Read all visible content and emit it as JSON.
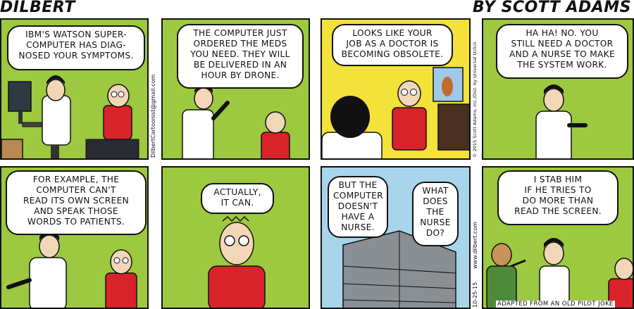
{
  "header": {
    "left_title": "DILBERT",
    "right_title": "BY SCOTT ADAMS"
  },
  "panels": [
    {
      "bubble": "IBM'S WATSON SUPER-\nCOMPUTER HAS DIAG-\nNOSED YOUR SYMPTOMS."
    },
    {
      "bubble": "THE COMPUTER JUST\nORDERED THE MEDS\nYOU NEED. THEY WILL\nBE DELIVERED IN AN\nHOUR BY DRONE."
    },
    {
      "bubble": "LOOKS LIKE YOUR\nJOB AS A DOCTOR IS\nBECOMING OBSOLETE."
    },
    {
      "bubble": "HA HA! NO. YOU\nSTILL NEED A DOCTOR\nAND A NURSE TO MAKE\nTHE SYSTEM WORK."
    },
    {
      "bubble": "FOR EXAMPLE, THE\nCOMPUTER CAN'T\nREAD ITS OWN SCREEN\nAND SPEAK THOSE\nWORDS TO PATIENTS."
    },
    {
      "bubble": "ACTUALLY,\nIT CAN."
    },
    {
      "bubble_left": "BUT THE\nCOMPUTER\nDOESN'T\nHAVE A\nNURSE.",
      "bubble_right": "WHAT\nDOES\nTHE\nNURSE\nDO?"
    },
    {
      "bubble": "I STAB HIM\nIF HE TRIES TO\nDO MORE THAN\nREAD THE SCREEN."
    }
  ],
  "side_text": {
    "email": "DilbertCartoonist@gmail.com",
    "copyright": "© 2015 Scott Adams, Inc./Dist. by Universal Uclick",
    "website": "www.dilbert.com",
    "date": "10-25-15"
  },
  "footer_credit": "ADAPTED FROM AN OLD PILOT JOKE",
  "colors": {
    "panel_green": "#9cc93f",
    "panel_yellow": "#f2e23a",
    "panel_sky": "#a8d4ec",
    "shirt_red": "#d9232b",
    "skin": "#f1d7b8"
  }
}
